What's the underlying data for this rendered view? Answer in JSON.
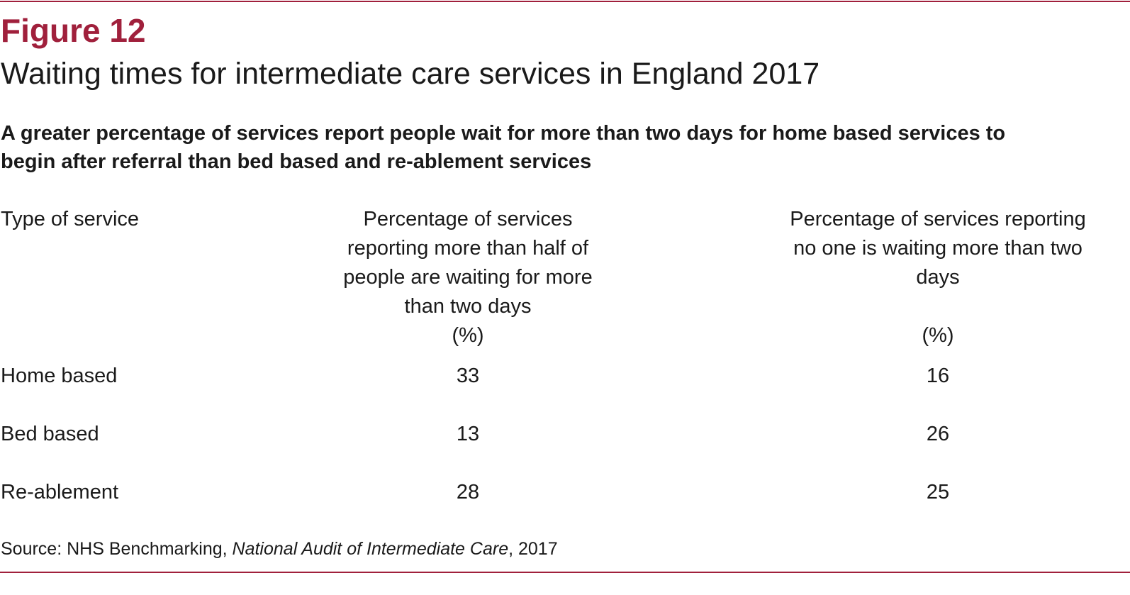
{
  "figure": {
    "label": "Figure 12",
    "title": "Waiting times for intermediate care services in England 2017",
    "subtitle": "A greater percentage of services report people wait for more than two days for home based services to begin after referral than bed based and re-ablement services"
  },
  "colors": {
    "accent": "#a0203c",
    "text": "#1a1a1a"
  },
  "chart_data": {
    "type": "table",
    "title": "Waiting times for intermediate care services in England 2017",
    "columns": [
      "Type of service",
      "Percentage of services reporting more than half of people are waiting for more than two days",
      "Percentage of services reporting no one is waiting more than two days"
    ],
    "units": [
      "",
      "(%)",
      "(%)"
    ],
    "rows": [
      {
        "name": "Home based",
        "v1": "33",
        "v2": "16"
      },
      {
        "name": "Bed based",
        "v1": "13",
        "v2": "26"
      },
      {
        "name": "Re-ablement",
        "v1": "28",
        "v2": "25"
      }
    ]
  },
  "source": {
    "prefix": "Source: NHS Benchmarking, ",
    "publication": "National Audit of Intermediate Care",
    "suffix": ", 2017"
  }
}
